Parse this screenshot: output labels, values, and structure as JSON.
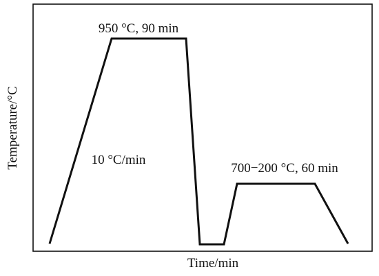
{
  "annotations": {
    "peak": "950 °C, 90 min",
    "ramp": "10 °C/min",
    "hold": "700−200 °C, 60 min"
  },
  "axes": {
    "x_label": "Time/min",
    "y_label": "Temperature/°C"
  }
}
